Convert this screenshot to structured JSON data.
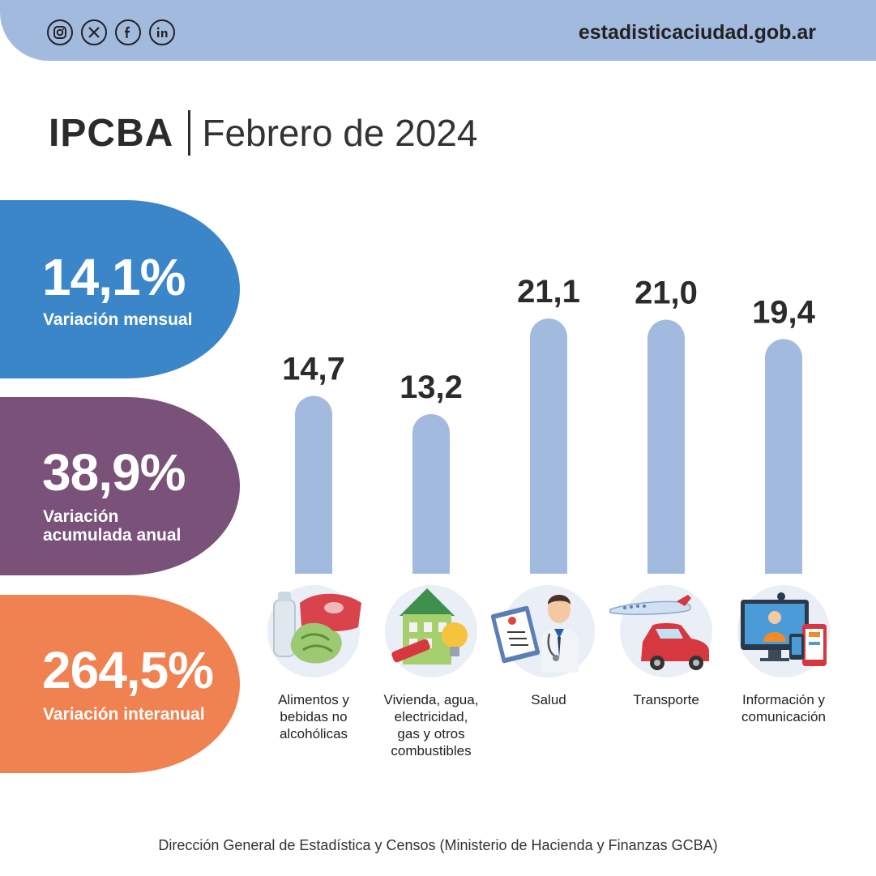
{
  "header": {
    "site_url": "estadisticaciudad.gob.ar",
    "social_icons": [
      "instagram-icon",
      "x-icon",
      "facebook-icon",
      "linkedin-icon"
    ]
  },
  "title": {
    "strong": "IPCBA",
    "light": "Febrero de 2024"
  },
  "stats": [
    {
      "value": "14,1%",
      "label": "Variación mensual",
      "color": "#3a86c8"
    },
    {
      "value": "38,9%",
      "label": "Variación acumulada anual",
      "color": "#7a5178"
    },
    {
      "value": "264,5%",
      "label": "Variación interanual",
      "color": "#f08150"
    }
  ],
  "chart_data": {
    "type": "bar",
    "categories": [
      "Alimentos y bebidas no alcohólicas",
      "Vivienda, agua, electricidad, gas y otros combustibles",
      "Salud",
      "Transporte",
      "Información y comunicación"
    ],
    "values": [
      14.7,
      13.2,
      21.1,
      21.0,
      19.4
    ],
    "value_labels": [
      "14,7",
      "13,2",
      "21,1",
      "21,0",
      "19,4"
    ],
    "bar_color": "#a3badf",
    "grid": false
  },
  "categories_display": [
    {
      "lines": [
        "Alimentos y",
        "bebidas no",
        "alcohólicas"
      ],
      "icon": "food-icon"
    },
    {
      "lines": [
        "Vivienda, agua,",
        "electricidad,",
        "gas y otros",
        "combustibles"
      ],
      "icon": "house-icon"
    },
    {
      "lines": [
        "Salud"
      ],
      "icon": "doctor-icon"
    },
    {
      "lines": [
        "Transporte"
      ],
      "icon": "transport-icon"
    },
    {
      "lines": [
        "Información y",
        "comunicación"
      ],
      "icon": "computer-icon"
    }
  ],
  "footer": "Dirección General de Estadística y Censos (Ministerio de Hacienda y Finanzas GCBA)"
}
